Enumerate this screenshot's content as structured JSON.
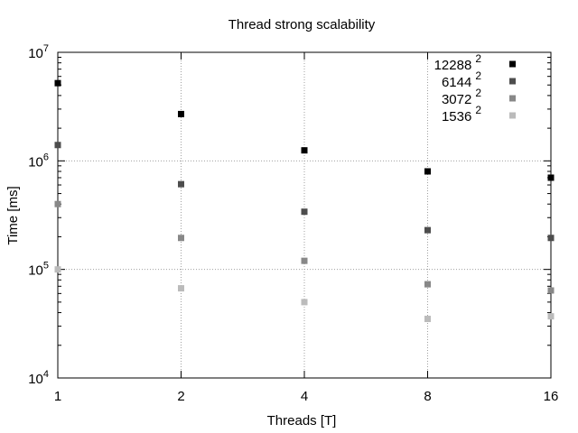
{
  "chart_data": {
    "type": "scatter",
    "title": "Thread strong scalability",
    "xlabel": "Threads [T]",
    "ylabel": "Time [ms]",
    "x_scale": "log2",
    "y_scale": "log10",
    "x": [
      1,
      2,
      4,
      8,
      16
    ],
    "x_tick_labels": [
      "1",
      "2",
      "4",
      "8",
      "16"
    ],
    "xlim": [
      1,
      16
    ],
    "ylim": [
      10000,
      10000000
    ],
    "y_tick_values": [
      10000,
      100000,
      1000000,
      10000000
    ],
    "y_tick_labels": [
      {
        "base": "10",
        "exp": "4"
      },
      {
        "base": "10",
        "exp": "5"
      },
      {
        "base": "10",
        "exp": "6"
      },
      {
        "base": "10",
        "exp": "7"
      }
    ],
    "grid": true,
    "legend_position": "top-right",
    "series": [
      {
        "name": "12288",
        "exp": "2",
        "color": "#000000",
        "values": [
          5200000,
          2700000,
          1250000,
          800000,
          700000
        ]
      },
      {
        "name": "6144",
        "exp": "2",
        "color": "#4d4d4d",
        "values": [
          1400000,
          610000,
          340000,
          230000,
          195000
        ]
      },
      {
        "name": "3072",
        "exp": "2",
        "color": "#888888",
        "values": [
          400000,
          195000,
          120000,
          73000,
          64000
        ]
      },
      {
        "name": "1536",
        "exp": "2",
        "color": "#bbbbbb",
        "values": [
          100000,
          67000,
          50000,
          35000,
          37000
        ]
      }
    ]
  }
}
